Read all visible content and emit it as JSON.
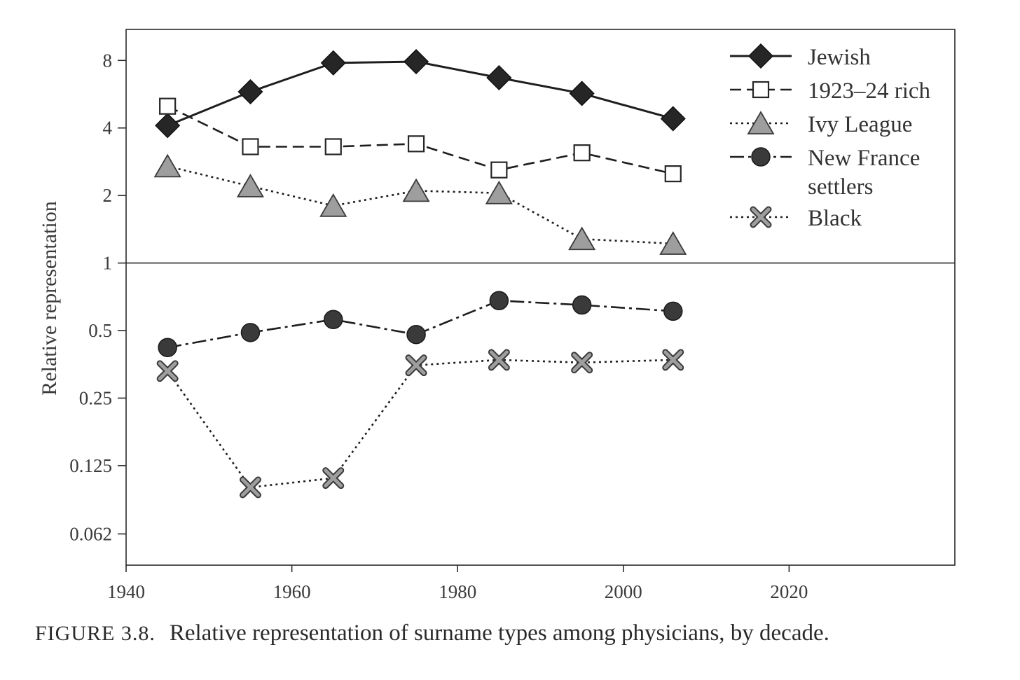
{
  "caption": {
    "label": "FIGURE 3.8.",
    "text": "Relative representation of surname types among physicians, by decade."
  },
  "chart_data": {
    "type": "line",
    "title": "",
    "xlabel": "",
    "ylabel": "Relative representation",
    "xlim": [
      1940,
      2040
    ],
    "ylim": [
      0.045,
      11
    ],
    "yscale": "log2",
    "xticks": [
      1940,
      1960,
      1980,
      2000,
      2020
    ],
    "yticks": [
      8,
      4,
      2,
      1,
      0.5,
      0.25,
      0.125,
      0.062
    ],
    "ytick_labels": [
      "8",
      "4",
      "2",
      "1",
      "0.5",
      "0.25",
      "0.125",
      "0.062"
    ],
    "reference_line": 1,
    "legend_position": "top-right",
    "grid": false,
    "series": [
      {
        "name": "Jewish",
        "style": "solid",
        "marker": "diamond-filled",
        "color": "#1a1a1a",
        "x": [
          1945,
          1955,
          1965,
          1975,
          1985,
          1995,
          2006
        ],
        "y": [
          4.1,
          5.8,
          7.8,
          7.9,
          6.7,
          5.7,
          4.4
        ]
      },
      {
        "name": "1923–24 rich",
        "style": "dashed",
        "marker": "square-open",
        "color": "#1a1a1a",
        "x": [
          1945,
          1955,
          1965,
          1975,
          1985,
          1995,
          2006
        ],
        "y": [
          5.0,
          3.3,
          3.3,
          3.4,
          2.6,
          3.1,
          2.5
        ]
      },
      {
        "name": "Ivy League",
        "style": "dotted",
        "marker": "triangle-gray",
        "color": "#1a1a1a",
        "x": [
          1945,
          1955,
          1965,
          1975,
          1985,
          1995,
          2006
        ],
        "y": [
          2.7,
          2.2,
          1.8,
          2.1,
          2.05,
          1.28,
          1.22
        ]
      },
      {
        "name": "New France settlers",
        "name_lines": [
          "New France",
          "settlers"
        ],
        "style": "dashdot",
        "marker": "circle-filled",
        "color": "#1a1a1a",
        "x": [
          1945,
          1955,
          1965,
          1975,
          1985,
          1995,
          2006
        ],
        "y": [
          0.42,
          0.49,
          0.56,
          0.48,
          0.68,
          0.65,
          0.61
        ]
      },
      {
        "name": "Black",
        "style": "dotted",
        "marker": "x-gray",
        "color": "#1a1a1a",
        "x": [
          1945,
          1955,
          1965,
          1975,
          1985,
          1995,
          2006
        ],
        "y": [
          0.33,
          0.1,
          0.11,
          0.35,
          0.37,
          0.36,
          0.37
        ]
      }
    ]
  }
}
